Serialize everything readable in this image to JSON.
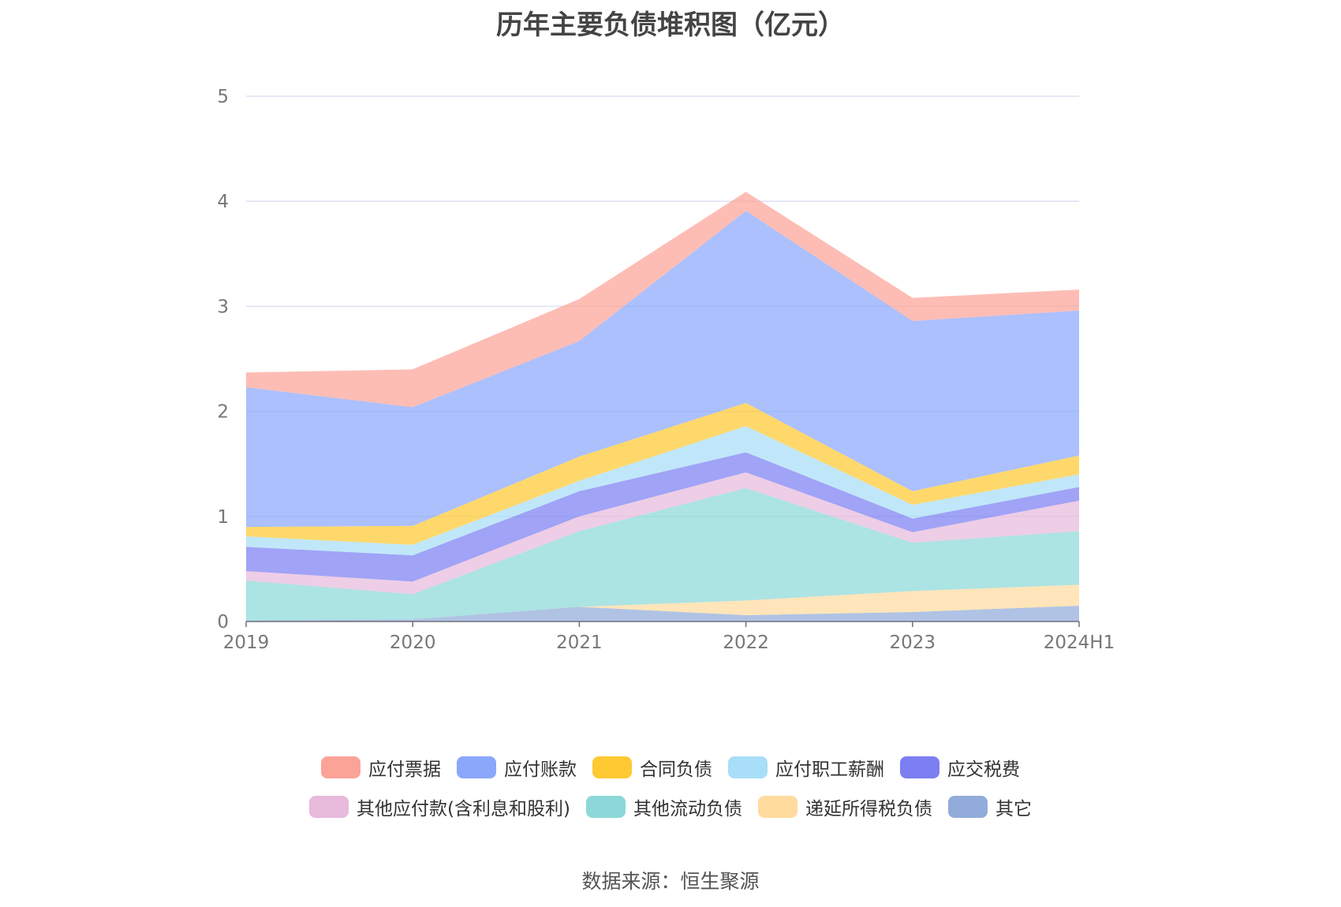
{
  "chart_data": {
    "type": "area",
    "stacked": true,
    "title": "历年主要负债堆积图（亿元）",
    "categories": [
      "2019",
      "2020",
      "2021",
      "2022",
      "2023",
      "2024H1"
    ],
    "ylim": [
      0,
      5
    ],
    "yticks": [
      "0",
      "1",
      "2",
      "3",
      "4",
      "5"
    ],
    "grid": true,
    "legend_position": "bottom",
    "series": [
      {
        "name": "其它",
        "color": "#91ACDA",
        "values": [
          0.01,
          0.02,
          0.14,
          0.06,
          0.09,
          0.15
        ]
      },
      {
        "name": "递延所得税负债",
        "color": "#FFDB9E",
        "values": [
          0.0,
          0.0,
          0.0,
          0.14,
          0.2,
          0.2
        ]
      },
      {
        "name": "其他流动负债",
        "color": "#8CD8D8",
        "values": [
          0.38,
          0.24,
          0.72,
          1.07,
          0.46,
          0.51
        ]
      },
      {
        "name": "其他应付款(含利息和股利)",
        "color": "#E8BADC",
        "values": [
          0.09,
          0.12,
          0.14,
          0.15,
          0.1,
          0.29
        ]
      },
      {
        "name": "应交税费",
        "color": "#7B7FF2",
        "values": [
          0.23,
          0.25,
          0.24,
          0.19,
          0.13,
          0.13
        ]
      },
      {
        "name": "应付职工薪酬",
        "color": "#A8DEF7",
        "values": [
          0.1,
          0.1,
          0.1,
          0.25,
          0.13,
          0.12
        ]
      },
      {
        "name": "合同负债",
        "color": "#FFC933",
        "values": [
          0.09,
          0.18,
          0.23,
          0.22,
          0.13,
          0.18
        ]
      },
      {
        "name": "应付账款",
        "color": "#8BA7FC",
        "values": [
          1.33,
          1.13,
          1.1,
          1.83,
          1.62,
          1.38
        ]
      },
      {
        "name": "应付票据",
        "color": "#FCA398",
        "values": [
          0.14,
          0.36,
          0.4,
          0.18,
          0.22,
          0.2
        ]
      }
    ]
  },
  "legend": {
    "row1": [
      {
        "label": "应付票据",
        "color": "#FCA398"
      },
      {
        "label": "应付账款",
        "color": "#8BA7FC"
      },
      {
        "label": "合同负债",
        "color": "#FFC933"
      },
      {
        "label": "应付职工薪酬",
        "color": "#A8DEF7"
      },
      {
        "label": "应交税费",
        "color": "#7B7FF2"
      }
    ],
    "row2": [
      {
        "label": "其他应付款(含利息和股利)",
        "color": "#E8BADC"
      },
      {
        "label": "其他流动负债",
        "color": "#8CD8D8"
      },
      {
        "label": "递延所得税负债",
        "color": "#FFDB9E"
      },
      {
        "label": "其它",
        "color": "#91ACDA"
      }
    ]
  },
  "source": "数据来源：恒生聚源"
}
